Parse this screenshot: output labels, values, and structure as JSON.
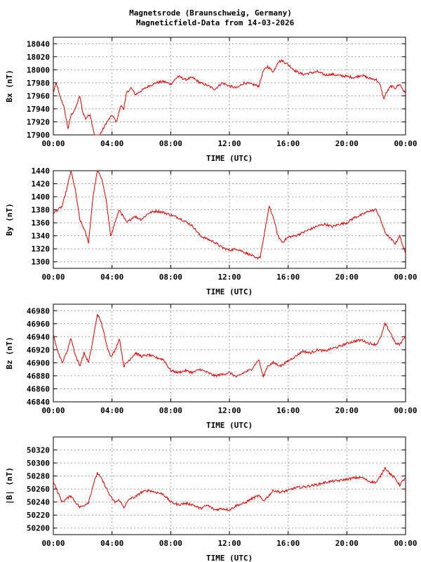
{
  "title": {
    "line1": "Magnetsrode (Braunschweig, Germany)",
    "line2": "Magneticfield-Data from 14-03-2026"
  },
  "colors": {
    "series": "#e00000",
    "grid": "#a0a0a0",
    "axis": "#000000"
  },
  "chart_data": [
    {
      "type": "line",
      "ylabel": "Bx (nT)",
      "xlabel": "TIME (UTC)",
      "xlim": [
        0,
        24
      ],
      "ylim": [
        17900,
        18050
      ],
      "x_ticks": [
        "00:00",
        "04:00",
        "08:00",
        "12:00",
        "16:00",
        "20:00",
        "00:00"
      ],
      "y_ticks": [
        17900,
        17920,
        17940,
        17960,
        17980,
        18000,
        18020,
        18040
      ],
      "grid": true,
      "series": [
        {
          "x": [
            0,
            0.2,
            0.4,
            0.7,
            1.0,
            1.2,
            1.5,
            1.8,
            2.0,
            2.2,
            2.5,
            2.8,
            3.0,
            3.3,
            3.6,
            4.0,
            4.3,
            4.6,
            4.8,
            5.0,
            5.3,
            5.6,
            6.0,
            6.5,
            7.0,
            7.5,
            8.0,
            8.5,
            9.0,
            9.5,
            10.0,
            10.5,
            11.0,
            11.5,
            12.0,
            12.5,
            13.0,
            13.5,
            14.0,
            14.3,
            14.6,
            15.0,
            15.3,
            15.6,
            16.0,
            16.5,
            17.0,
            17.5,
            18.0,
            18.5,
            19.0,
            19.5,
            20.0,
            20.5,
            21.0,
            21.5,
            22.0,
            22.3,
            22.5,
            22.7,
            23.0,
            23.3,
            23.6,
            24.0
          ],
          "values": [
            17965,
            17980,
            17962,
            17945,
            17910,
            17930,
            17940,
            17960,
            17935,
            17925,
            17932,
            17900,
            17895,
            17905,
            17918,
            17930,
            17920,
            17945,
            17940,
            17965,
            17972,
            17962,
            17968,
            17975,
            17980,
            17982,
            17978,
            17990,
            17985,
            17988,
            17980,
            17976,
            17970,
            17980,
            17975,
            17972,
            17980,
            17978,
            17975,
            17998,
            18005,
            17997,
            18012,
            18014,
            18008,
            17998,
            17993,
            17995,
            17997,
            17992,
            17993,
            17991,
            17990,
            17988,
            17992,
            17987,
            17985,
            17975,
            17955,
            17965,
            17975,
            17972,
            17978,
            17963
          ]
        }
      ]
    },
    {
      "type": "line",
      "ylabel": "By (nT)",
      "xlabel": "TIME (UTC)",
      "xlim": [
        0,
        24
      ],
      "ylim": [
        1290,
        1440
      ],
      "x_ticks": [
        "00:00",
        "04:00",
        "08:00",
        "12:00",
        "16:00",
        "20:00",
        "00:00"
      ],
      "y_ticks": [
        1300,
        1320,
        1340,
        1360,
        1380,
        1400,
        1420,
        1440
      ],
      "grid": true,
      "series": [
        {
          "x": [
            0,
            0.3,
            0.6,
            0.9,
            1.2,
            1.5,
            1.8,
            2.1,
            2.4,
            2.7,
            3.0,
            3.3,
            3.6,
            3.9,
            4.2,
            4.5,
            5.0,
            5.5,
            6.0,
            6.5,
            7.0,
            7.5,
            8.0,
            8.5,
            9.0,
            9.5,
            10.0,
            10.5,
            11.0,
            11.5,
            12.0,
            12.5,
            13.0,
            13.5,
            13.8,
            14.1,
            14.4,
            14.7,
            15.0,
            15.3,
            15.6,
            16.0,
            16.5,
            17.0,
            17.5,
            18.0,
            18.5,
            19.0,
            19.5,
            20.0,
            20.5,
            21.0,
            21.5,
            22.0,
            22.3,
            22.6,
            23.0,
            23.3,
            23.6,
            24.0
          ],
          "values": [
            1375,
            1380,
            1385,
            1410,
            1440,
            1410,
            1365,
            1350,
            1330,
            1400,
            1440,
            1428,
            1395,
            1340,
            1360,
            1380,
            1360,
            1370,
            1365,
            1375,
            1378,
            1376,
            1372,
            1368,
            1362,
            1355,
            1340,
            1335,
            1330,
            1322,
            1318,
            1320,
            1315,
            1310,
            1305,
            1308,
            1345,
            1385,
            1368,
            1340,
            1330,
            1338,
            1340,
            1345,
            1350,
            1355,
            1358,
            1354,
            1358,
            1360,
            1368,
            1372,
            1378,
            1380,
            1365,
            1345,
            1335,
            1328,
            1340,
            1312
          ]
        }
      ]
    },
    {
      "type": "line",
      "ylabel": "Bz (nT)",
      "xlabel": "TIME (UTC)",
      "xlim": [
        0,
        24
      ],
      "ylim": [
        46840,
        46990
      ],
      "x_ticks": [
        "00:00",
        "04:00",
        "08:00",
        "12:00",
        "16:00",
        "20:00",
        "00:00"
      ],
      "y_ticks": [
        46840,
        46860,
        46880,
        46900,
        46920,
        46940,
        46960,
        46980
      ],
      "grid": true,
      "series": [
        {
          "x": [
            0,
            0.3,
            0.6,
            0.9,
            1.2,
            1.5,
            1.8,
            2.1,
            2.4,
            2.7,
            3.0,
            3.3,
            3.6,
            3.9,
            4.2,
            4.5,
            4.8,
            5.2,
            5.6,
            6.0,
            6.5,
            7.0,
            7.5,
            8.0,
            8.5,
            9.0,
            9.5,
            10.0,
            10.5,
            11.0,
            11.5,
            12.0,
            12.5,
            13.0,
            13.5,
            14.0,
            14.3,
            14.6,
            15.0,
            15.5,
            16.0,
            16.5,
            17.0,
            17.5,
            18.0,
            18.5,
            19.0,
            19.5,
            20.0,
            20.5,
            21.0,
            21.5,
            22.0,
            22.3,
            22.6,
            23.0,
            23.3,
            23.6,
            24.0
          ],
          "values": [
            46945,
            46918,
            46900,
            46915,
            46938,
            46912,
            46895,
            46915,
            46900,
            46935,
            46975,
            46960,
            46930,
            46910,
            46918,
            46938,
            46895,
            46905,
            46915,
            46910,
            46912,
            46908,
            46905,
            46888,
            46885,
            46888,
            46885,
            46890,
            46885,
            46880,
            46882,
            46885,
            46878,
            46885,
            46890,
            46905,
            46878,
            46895,
            46900,
            46895,
            46903,
            46910,
            46918,
            46915,
            46920,
            46918,
            46922,
            46925,
            46930,
            46933,
            46935,
            46930,
            46928,
            46938,
            46960,
            46945,
            46930,
            46928,
            46942
          ]
        }
      ]
    },
    {
      "type": "line",
      "ylabel": "|B| (nT)",
      "xlabel": "TIME (UTC)",
      "xlim": [
        0,
        24
      ],
      "ylim": [
        50190,
        50340
      ],
      "x_ticks": [
        "00:00",
        "04:00",
        "08:00",
        "12:00",
        "16:00",
        "20:00",
        "00:00"
      ],
      "y_ticks": [
        50200,
        50220,
        50240,
        50260,
        50280,
        50300,
        50320
      ],
      "grid": true,
      "series": [
        {
          "x": [
            0,
            0.3,
            0.6,
            0.9,
            1.2,
            1.5,
            1.8,
            2.1,
            2.4,
            2.7,
            3.0,
            3.3,
            3.6,
            3.9,
            4.2,
            4.5,
            4.8,
            5.2,
            5.6,
            6.0,
            6.5,
            7.0,
            7.5,
            8.0,
            8.5,
            9.0,
            9.5,
            10.0,
            10.5,
            11.0,
            11.5,
            12.0,
            12.5,
            13.0,
            13.5,
            14.0,
            14.3,
            14.6,
            15.0,
            15.5,
            16.0,
            16.5,
            17.0,
            17.5,
            18.0,
            18.5,
            19.0,
            19.5,
            20.0,
            20.5,
            21.0,
            21.5,
            22.0,
            22.3,
            22.6,
            23.0,
            23.3,
            23.6,
            24.0
          ],
          "values": [
            50272,
            50255,
            50240,
            50245,
            50250,
            50240,
            50232,
            50235,
            50240,
            50265,
            50285,
            50275,
            50262,
            50248,
            50240,
            50243,
            50232,
            50245,
            50248,
            50255,
            50258,
            50255,
            50252,
            50240,
            50236,
            50238,
            50236,
            50230,
            50235,
            50228,
            50230,
            50228,
            50235,
            50238,
            50245,
            50250,
            50242,
            50248,
            50258,
            50255,
            50258,
            50262,
            50263,
            50265,
            50267,
            50270,
            50272,
            50273,
            50275,
            50277,
            50278,
            50272,
            50270,
            50280,
            50293,
            50282,
            50276,
            50266,
            50278
          ]
        }
      ]
    }
  ]
}
